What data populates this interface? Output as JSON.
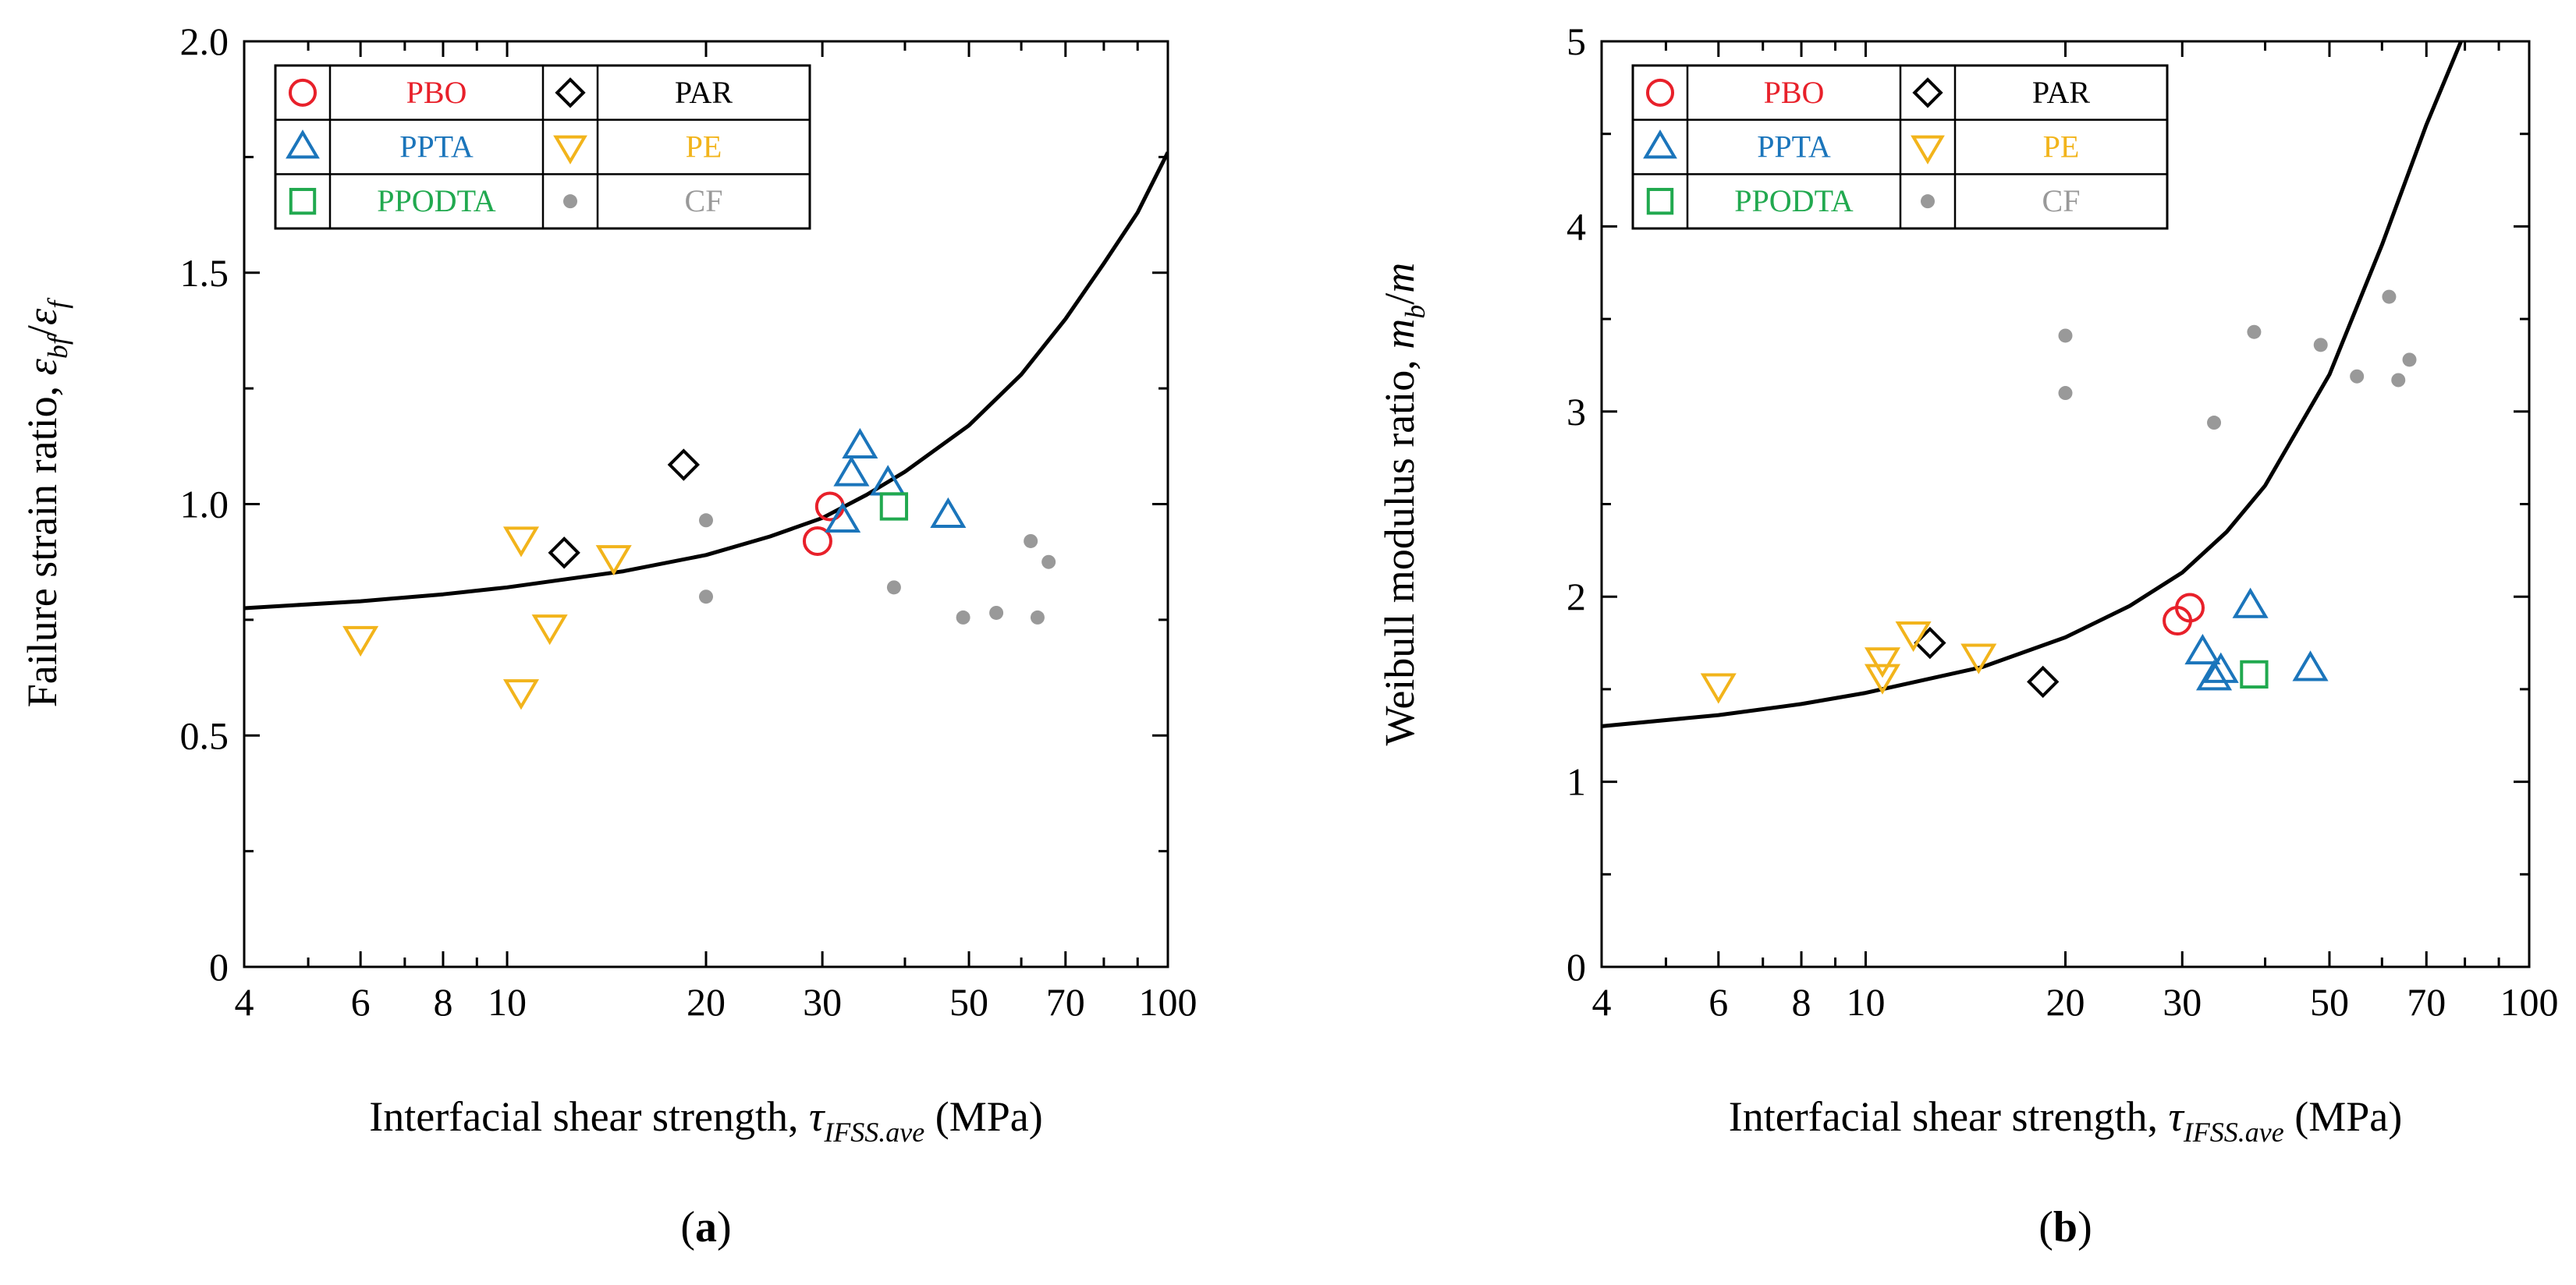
{
  "figure": {
    "panels": [
      "a",
      "b"
    ]
  },
  "chart_data": [
    {
      "type": "scatter",
      "panel_label": "a",
      "xscale": "log",
      "xlim": [
        4,
        100
      ],
      "ylim": [
        0,
        2.0
      ],
      "xticks": [
        4,
        6,
        8,
        10,
        20,
        30,
        50,
        70,
        100
      ],
      "xtick_labels": [
        "4",
        "6",
        "8",
        "10",
        "20",
        "30",
        "50",
        "70",
        "100"
      ],
      "yticks": [
        0,
        0.5,
        1.0,
        1.5,
        2.0
      ],
      "ytick_labels": [
        "0",
        "0.5",
        "1.0",
        "1.5",
        "2.0"
      ],
      "xlabel": {
        "main": "Interfacial shear strength, ",
        "sym": "τ",
        "sub": "IFSS.ave",
        "tail": " (MPa)"
      },
      "ylabel": {
        "main": "Failure strain ratio, ",
        "sym1": "ε",
        "sub1": "bf",
        "sep": "/",
        "sym2": "ε",
        "sub2": "f"
      },
      "legend": [
        {
          "name": "PBO",
          "marker": "circle",
          "color": "#e8202a"
        },
        {
          "name": "PAR",
          "marker": "diamond",
          "color": "#000000"
        },
        {
          "name": "PPTA",
          "marker": "triangle-up",
          "color": "#1b75bb"
        },
        {
          "name": "PE",
          "marker": "triangle-down",
          "color": "#f2b41b"
        },
        {
          "name": "PPODTA",
          "marker": "square",
          "color": "#21a94f"
        },
        {
          "name": "CF",
          "marker": "dot",
          "color": "#999999"
        }
      ],
      "series": [
        {
          "name": "PBO",
          "points": [
            [
              29.5,
              0.92
            ],
            [
              30.8,
              0.995
            ]
          ]
        },
        {
          "name": "PAR",
          "points": [
            [
              12.2,
              0.895
            ],
            [
              18.5,
              1.085
            ]
          ]
        },
        {
          "name": "PPTA",
          "points": [
            [
              32.2,
              0.965
            ],
            [
              33.2,
              1.065
            ],
            [
              34.2,
              1.125
            ],
            [
              37.7,
              1.045
            ],
            [
              46.5,
              0.975
            ]
          ]
        },
        {
          "name": "PE",
          "points": [
            [
              6.0,
              0.71
            ],
            [
              10.5,
              0.925
            ],
            [
              10.5,
              0.595
            ],
            [
              11.6,
              0.735
            ],
            [
              14.5,
              0.885
            ]
          ]
        },
        {
          "name": "PPODTA",
          "points": [
            [
              38.5,
              0.995
            ]
          ]
        },
        {
          "name": "CF",
          "points": [
            [
              20.0,
              0.965
            ],
            [
              20.0,
              0.8
            ],
            [
              38.5,
              0.82
            ],
            [
              49.0,
              0.755
            ],
            [
              55.0,
              0.765
            ],
            [
              62.0,
              0.92
            ],
            [
              63.5,
              0.755
            ],
            [
              66.0,
              0.875
            ]
          ]
        }
      ],
      "curve": {
        "points": [
          [
            4,
            0.775
          ],
          [
            6,
            0.79
          ],
          [
            8,
            0.805
          ],
          [
            10,
            0.82
          ],
          [
            15,
            0.855
          ],
          [
            20,
            0.89
          ],
          [
            25,
            0.93
          ],
          [
            30,
            0.97
          ],
          [
            35,
            1.02
          ],
          [
            40,
            1.07
          ],
          [
            50,
            1.17
          ],
          [
            60,
            1.28
          ],
          [
            70,
            1.4
          ],
          [
            80,
            1.52
          ],
          [
            90,
            1.63
          ],
          [
            100,
            1.76
          ]
        ]
      }
    },
    {
      "type": "scatter",
      "panel_label": "b",
      "xscale": "log",
      "xlim": [
        4,
        100
      ],
      "ylim": [
        0,
        5
      ],
      "xticks": [
        4,
        6,
        8,
        10,
        20,
        30,
        50,
        70,
        100
      ],
      "xtick_labels": [
        "4",
        "6",
        "8",
        "10",
        "20",
        "30",
        "50",
        "70",
        "100"
      ],
      "yticks": [
        0,
        1,
        2,
        3,
        4,
        5
      ],
      "ytick_labels": [
        "0",
        "1",
        "2",
        "3",
        "4",
        "5"
      ],
      "xlabel": {
        "main": "Interfacial shear strength, ",
        "sym": "τ",
        "sub": "IFSS.ave",
        "tail": " (MPa)"
      },
      "ylabel": {
        "main": "Weibull modulus ratio, ",
        "sym1": "m",
        "sub1": "b",
        "sep": "/",
        "sym2": "m",
        "sub2": ""
      },
      "legend": [
        {
          "name": "PBO",
          "marker": "circle",
          "color": "#e8202a"
        },
        {
          "name": "PAR",
          "marker": "diamond",
          "color": "#000000"
        },
        {
          "name": "PPTA",
          "marker": "triangle-up",
          "color": "#1b75bb"
        },
        {
          "name": "PE",
          "marker": "triangle-down",
          "color": "#f2b41b"
        },
        {
          "name": "PPODTA",
          "marker": "square",
          "color": "#21a94f"
        },
        {
          "name": "CF",
          "marker": "dot",
          "color": "#999999"
        }
      ],
      "series": [
        {
          "name": "PBO",
          "points": [
            [
              29.5,
              1.87
            ],
            [
              30.8,
              1.94
            ]
          ]
        },
        {
          "name": "PAR",
          "points": [
            [
              12.5,
              1.75
            ],
            [
              18.5,
              1.54
            ]
          ]
        },
        {
          "name": "PPTA",
          "points": [
            [
              32.2,
              1.7
            ],
            [
              33.5,
              1.56
            ],
            [
              34.3,
              1.6
            ],
            [
              38.0,
              1.95
            ],
            [
              46.8,
              1.61
            ]
          ]
        },
        {
          "name": "PE",
          "points": [
            [
              6.0,
              1.52
            ],
            [
              10.6,
              1.66
            ],
            [
              10.6,
              1.57
            ],
            [
              11.8,
              1.8
            ],
            [
              14.8,
              1.68
            ]
          ]
        },
        {
          "name": "PPODTA",
          "points": [
            [
              38.5,
              1.58
            ]
          ]
        },
        {
          "name": "CF",
          "points": [
            [
              20.0,
              3.41
            ],
            [
              20.0,
              3.1
            ],
            [
              33.5,
              2.94
            ],
            [
              38.5,
              3.43
            ],
            [
              48.5,
              3.36
            ],
            [
              55.0,
              3.19
            ],
            [
              61.5,
              3.62
            ],
            [
              63.5,
              3.17
            ],
            [
              66.0,
              3.28
            ]
          ]
        }
      ],
      "curve": {
        "points": [
          [
            4,
            1.3
          ],
          [
            6,
            1.36
          ],
          [
            8,
            1.42
          ],
          [
            10,
            1.48
          ],
          [
            15,
            1.62
          ],
          [
            20,
            1.78
          ],
          [
            25,
            1.95
          ],
          [
            30,
            2.13
          ],
          [
            35,
            2.35
          ],
          [
            40,
            2.6
          ],
          [
            50,
            3.2
          ],
          [
            60,
            3.9
          ],
          [
            70,
            4.55
          ],
          [
            80,
            5.05
          ]
        ]
      }
    }
  ]
}
